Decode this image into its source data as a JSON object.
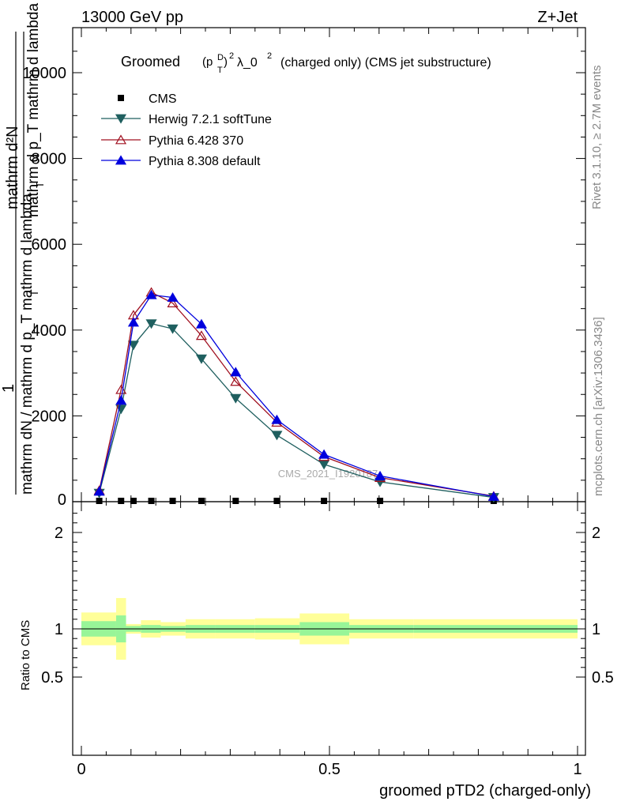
{
  "header": {
    "left": "13000 GeV pp",
    "right": "Z+Jet"
  },
  "title": {
    "prefix": "Groomed",
    "p": "(p",
    "sup_d": "D",
    "sub_t": "T",
    "close": ")",
    "sup_2": "2",
    "lambda": "λ_0",
    "sup_2b": "2",
    "suffix": "(charged only) (CMS jet substructure)"
  },
  "side_labels": {
    "rivet": "Rivet 3.1.10, ≥ 2.7M events",
    "mcplots": "mcplots.cern.ch [arXiv:1306.3436]"
  },
  "watermark": "CMS_2021_I1920187",
  "ylabel": {
    "numerator_top": "mathrm d²N",
    "denominator_top": "mathrm d p_T mathrm d lambda",
    "numerator_one": "1",
    "fraction_text": "mathrm dN / mathrm d p_T mathrm d lambda",
    "sub_t_1": "T",
    "sub_t_2": "T"
  },
  "ratio_ylabel": "Ratio to CMS",
  "xlabel": "groomed pTD2 (charged-only)",
  "legend": [
    {
      "label": "CMS",
      "color": "#000000",
      "marker": "square"
    },
    {
      "label": "Herwig 7.2.1 softTune",
      "color": "#1f5f5f",
      "marker": "triangle-down"
    },
    {
      "label": "Pythia 6.428 370",
      "color": "#a01020",
      "marker": "triangle-up-open"
    },
    {
      "label": "Pythia 8.308 default",
      "color": "#0000dd",
      "marker": "triangle-up"
    }
  ],
  "chart_data": {
    "type": "line",
    "x": [
      0.036,
      0.08,
      0.105,
      0.141,
      0.184,
      0.242,
      0.311,
      0.394,
      0.489,
      0.602,
      0.831
    ],
    "xlim": [
      -0.02,
      1.02
    ],
    "ylim_main": [
      0,
      11000
    ],
    "ylim_ratio": [
      0.35,
      2.3
    ],
    "yticks_main": [
      2000,
      4000,
      6000,
      8000,
      10000
    ],
    "ytick_labels_main": [
      "2000",
      "4000",
      "6000",
      "8000",
      "10000"
    ],
    "yticks_ratio": [
      0.5,
      1,
      2
    ],
    "ytick_labels_ratio": [
      "0.5",
      "1",
      "2"
    ],
    "xticks": [
      0,
      0.5,
      1
    ],
    "xtick_labels": [
      "0",
      "0.5",
      "1"
    ],
    "series": [
      {
        "name": "CMS",
        "values": [
          5,
          5,
          5,
          5,
          5,
          5,
          5,
          5,
          5,
          5,
          5
        ]
      },
      {
        "name": "Herwig 7.2.1 softTune",
        "values": [
          200,
          2160,
          3650,
          4150,
          4030,
          3330,
          2410,
          1550,
          870,
          460,
          100
        ]
      },
      {
        "name": "Pythia 6.428 370",
        "values": [
          260,
          2610,
          4350,
          4880,
          4630,
          3870,
          2800,
          1850,
          1050,
          560,
          130
        ]
      },
      {
        "name": "Pythia 8.308 default",
        "values": [
          240,
          2360,
          4180,
          4820,
          4760,
          4140,
          3020,
          1910,
          1100,
          600,
          120
        ]
      }
    ],
    "ratio_bands": {
      "edges": [
        0.0,
        0.07,
        0.09,
        0.12,
        0.16,
        0.21,
        0.27,
        0.35,
        0.44,
        0.54,
        0.67,
        1.0
      ],
      "inner_lo": [
        0.92,
        0.86,
        0.97,
        0.96,
        0.97,
        0.96,
        0.96,
        0.96,
        0.93,
        0.96,
        0.96
      ],
      "inner_hi": [
        1.08,
        1.14,
        1.03,
        1.04,
        1.03,
        1.04,
        1.04,
        1.04,
        1.07,
        1.04,
        1.04
      ],
      "outer_lo": [
        0.83,
        0.68,
        0.95,
        0.91,
        0.93,
        0.9,
        0.9,
        0.89,
        0.84,
        0.9,
        0.9
      ],
      "outer_hi": [
        1.17,
        1.32,
        1.05,
        1.09,
        1.07,
        1.1,
        1.1,
        1.11,
        1.16,
        1.1,
        1.1
      ],
      "inner_color": "#98f598",
      "outer_color": "#ffff99"
    }
  }
}
